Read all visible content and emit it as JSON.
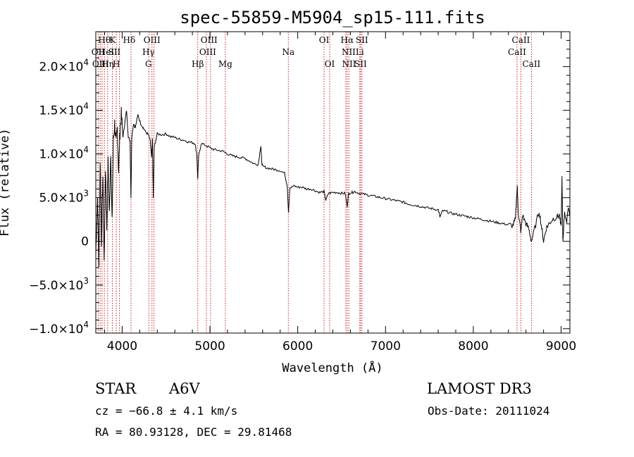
{
  "chart_data": {
    "type": "line",
    "title": "spec-55859-M5904_sp15-111.fits",
    "xlabel": "Wavelength (Å)",
    "ylabel": "Flux (relative)",
    "xlim": [
      3700,
      9100
    ],
    "ylim": [
      -10500,
      24000
    ],
    "x_ticks": [
      4000,
      5000,
      6000,
      7000,
      8000,
      9000
    ],
    "x_tick_labels": [
      "4000",
      "5000",
      "6000",
      "7000",
      "8000",
      "9000"
    ],
    "y_ticks": [
      {
        "value": 20000,
        "mant": "2.0",
        "exp": "4"
      },
      {
        "value": 15000,
        "mant": "1.5",
        "exp": "4"
      },
      {
        "value": 10000,
        "mant": "1.0",
        "exp": "4"
      },
      {
        "value": 5000,
        "mant": "5.0",
        "exp": "3"
      },
      {
        "value": 0,
        "mant": "0",
        "exp": ""
      },
      {
        "value": -5000,
        "mant": "−5.0",
        "exp": "3"
      },
      {
        "value": -10000,
        "mant": "−1.0",
        "exp": "4"
      }
    ],
    "y_tick_separator": "×10",
    "series": [
      {
        "name": "flux",
        "points": [
          [
            3700,
            -1500
          ],
          [
            3720,
            5000
          ],
          [
            3735,
            -2500
          ],
          [
            3750,
            9500
          ],
          [
            3765,
            0
          ],
          [
            3780,
            7500
          ],
          [
            3795,
            -2500
          ],
          [
            3810,
            8500
          ],
          [
            3825,
            1500
          ],
          [
            3840,
            9000
          ],
          [
            3855,
            3000
          ],
          [
            3870,
            10500
          ],
          [
            3885,
            2000
          ],
          [
            3900,
            11500
          ],
          [
            3915,
            13500
          ],
          [
            3930,
            11000
          ],
          [
            3945,
            13000
          ],
          [
            3960,
            8000
          ],
          [
            3975,
            12500
          ],
          [
            3990,
            14500
          ],
          [
            4010,
            12000
          ],
          [
            4030,
            13500
          ],
          [
            4050,
            15000
          ],
          [
            4070,
            12000
          ],
          [
            4090,
            11500
          ],
          [
            4100,
            5000
          ],
          [
            4110,
            12000
          ],
          [
            4130,
            13500
          ],
          [
            4150,
            13000
          ],
          [
            4180,
            14500
          ],
          [
            4210,
            13500
          ],
          [
            4240,
            13000
          ],
          [
            4270,
            12500
          ],
          [
            4300,
            12200
          ],
          [
            4320,
            11500
          ],
          [
            4335,
            9500
          ],
          [
            4345,
            11800
          ],
          [
            4355,
            5000
          ],
          [
            4365,
            10800
          ],
          [
            4400,
            12300
          ],
          [
            4450,
            12200
          ],
          [
            4500,
            12300
          ],
          [
            4550,
            12000
          ],
          [
            4600,
            11900
          ],
          [
            4650,
            11700
          ],
          [
            4700,
            11600
          ],
          [
            4750,
            11400
          ],
          [
            4800,
            11300
          ],
          [
            4830,
            11200
          ],
          [
            4850,
            10000
          ],
          [
            4861,
            7200
          ],
          [
            4872,
            9800
          ],
          [
            4900,
            11200
          ],
          [
            4950,
            11000
          ],
          [
            5000,
            10700
          ],
          [
            5050,
            10500
          ],
          [
            5100,
            10400
          ],
          [
            5150,
            10300
          ],
          [
            5200,
            10000
          ],
          [
            5250,
            9800
          ],
          [
            5300,
            9700
          ],
          [
            5350,
            9600
          ],
          [
            5400,
            9500
          ],
          [
            5450,
            9200
          ],
          [
            5500,
            8900
          ],
          [
            5550,
            8800
          ],
          [
            5580,
            11000
          ],
          [
            5590,
            9000
          ],
          [
            5600,
            8600
          ],
          [
            5650,
            8400
          ],
          [
            5700,
            8300
          ],
          [
            5750,
            8200
          ],
          [
            5800,
            8100
          ],
          [
            5850,
            7800
          ],
          [
            5880,
            6400
          ],
          [
            5895,
            3300
          ],
          [
            5910,
            6000
          ],
          [
            5950,
            6400
          ],
          [
            6000,
            6200
          ],
          [
            6050,
            6200
          ],
          [
            6100,
            6000
          ],
          [
            6150,
            6000
          ],
          [
            6200,
            5800
          ],
          [
            6250,
            5600
          ],
          [
            6300,
            5700
          ],
          [
            6320,
            4700
          ],
          [
            6350,
            5500
          ],
          [
            6400,
            5600
          ],
          [
            6450,
            5600
          ],
          [
            6500,
            5500
          ],
          [
            6540,
            5500
          ],
          [
            6563,
            4000
          ],
          [
            6580,
            5500
          ],
          [
            6620,
            5600
          ],
          [
            6650,
            5700
          ],
          [
            6700,
            5500
          ],
          [
            6750,
            5400
          ],
          [
            6800,
            5300
          ],
          [
            6850,
            5200
          ],
          [
            6900,
            5100
          ],
          [
            6950,
            5000
          ],
          [
            7000,
            4900
          ],
          [
            7050,
            4800
          ],
          [
            7100,
            4700
          ],
          [
            7150,
            4600
          ],
          [
            7200,
            4500
          ],
          [
            7250,
            4300
          ],
          [
            7300,
            4200
          ],
          [
            7350,
            4100
          ],
          [
            7400,
            4000
          ],
          [
            7450,
            3900
          ],
          [
            7500,
            3800
          ],
          [
            7550,
            3700
          ],
          [
            7600,
            3600
          ],
          [
            7620,
            2800
          ],
          [
            7650,
            3500
          ],
          [
            7700,
            3400
          ],
          [
            7750,
            3200
          ],
          [
            7800,
            3100
          ],
          [
            7850,
            3000
          ],
          [
            7900,
            2900
          ],
          [
            7950,
            2800
          ],
          [
            8000,
            2700
          ],
          [
            8050,
            2600
          ],
          [
            8100,
            2500
          ],
          [
            8150,
            2400
          ],
          [
            8200,
            2300
          ],
          [
            8250,
            2200
          ],
          [
            8300,
            2100
          ],
          [
            8350,
            2000
          ],
          [
            8400,
            1900
          ],
          [
            8450,
            1800
          ],
          [
            8480,
            2500
          ],
          [
            8500,
            6500
          ],
          [
            8510,
            3500
          ],
          [
            8530,
            2000
          ],
          [
            8542,
            1000
          ],
          [
            8560,
            3000
          ],
          [
            8600,
            2000
          ],
          [
            8630,
            1500
          ],
          [
            8662,
            0
          ],
          [
            8700,
            1500
          ],
          [
            8750,
            3500
          ],
          [
            8780,
            1500
          ],
          [
            8800,
            0
          ],
          [
            8830,
            1500
          ],
          [
            8860,
            2000
          ],
          [
            8900,
            2500
          ],
          [
            8950,
            2800
          ],
          [
            8980,
            3000
          ],
          [
            9000,
            1500
          ],
          [
            9010,
            7200
          ],
          [
            9020,
            0
          ],
          [
            9040,
            3500
          ],
          [
            9060,
            2000
          ],
          [
            9080,
            4000
          ],
          [
            9100,
            3000
          ]
        ]
      }
    ],
    "spectral_lines": [
      {
        "label": "OII",
        "x": 3727,
        "row": 1
      },
      {
        "label": "Hθ",
        "x": 3798,
        "row": 0
      },
      {
        "label": "OIII",
        "x": 3755,
        "row": 2
      },
      {
        "label": "HeI",
        "x": 3820,
        "row": 1
      },
      {
        "label": "Hη",
        "x": 3835,
        "row": 2
      },
      {
        "label": "K",
        "x": 3890,
        "row": 0
      },
      {
        "label": "SII",
        "x": 3912,
        "row": 1
      },
      {
        "label": "H",
        "x": 3935,
        "row": 2
      },
      {
        "label": "Hδ",
        "x": 4080,
        "row": 0
      },
      {
        "label": "OIII",
        "x": 4340,
        "row": 0
      },
      {
        "label": "Hγ",
        "x": 4300,
        "row": 1
      },
      {
        "label": "G",
        "x": 4300,
        "row": 2
      },
      {
        "label": "OIII",
        "x": 4990,
        "row": 0
      },
      {
        "label": "OIII",
        "x": 4975,
        "row": 1
      },
      {
        "label": "Hβ",
        "x": 4861,
        "row": 2
      },
      {
        "label": "Mg",
        "x": 5175,
        "row": 2
      },
      {
        "label": "Na",
        "x": 5893,
        "row": 1
      },
      {
        "label": "OI",
        "x": 6300,
        "row": 0
      },
      {
        "label": "OI",
        "x": 6364,
        "row": 2
      },
      {
        "label": "Hα",
        "x": 6563,
        "row": 0
      },
      {
        "label": "SII",
        "x": 6731,
        "row": 0
      },
      {
        "label": "NII",
        "x": 6580,
        "row": 1
      },
      {
        "label": "Li",
        "x": 6707,
        "row": 1
      },
      {
        "label": "NII",
        "x": 6584,
        "row": 2
      },
      {
        "label": "SII",
        "x": 6716,
        "row": 2
      },
      {
        "label": "CaII",
        "x": 8542,
        "row": 0
      },
      {
        "label": "CaII",
        "x": 8498,
        "row": 1
      },
      {
        "label": "CaII",
        "x": 8662,
        "row": 2
      }
    ],
    "line_markers": [
      3727,
      3750,
      3771,
      3798,
      3835,
      3889,
      3934,
      3969,
      4101,
      4304,
      4340,
      4363,
      4861,
      4959,
      5007,
      5175,
      5893,
      6300,
      6364,
      6548,
      6563,
      6583,
      6707,
      6716,
      6731,
      8498,
      8542,
      8662
    ]
  },
  "info": {
    "object_class": "STAR",
    "subclass": "A6V",
    "survey": "LAMOST DR3",
    "redshift": "cz = −66.8 ± 4.1 km/s",
    "obs_date": "Obs-Date: 20111024",
    "coords": "RA =  80.93128, DEC =  29.81468"
  }
}
